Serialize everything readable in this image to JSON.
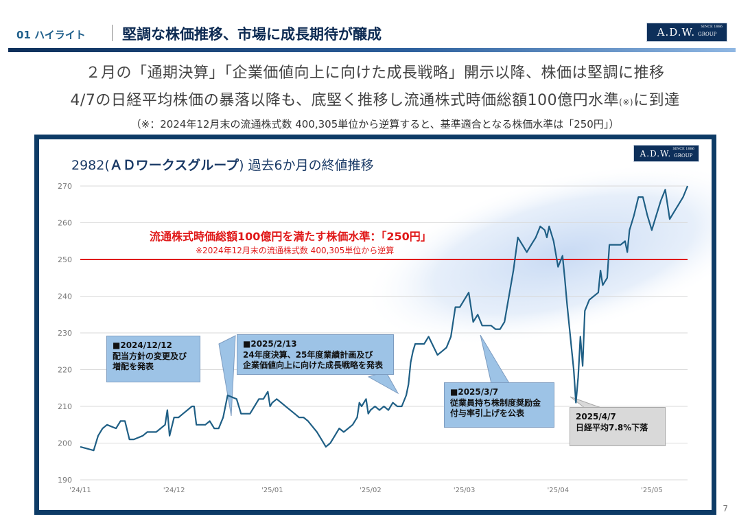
{
  "header": {
    "section": "01 ハイライト",
    "title": "堅調な株価推移、市場に成長期待が醸成",
    "logo_text": "A.D.W.",
    "logo_group": "GROUP",
    "logo_since": "SINCE 1886"
  },
  "lead": {
    "line1": "２月の「通期決算」「企業価値向上に向けた成長戦略」開示以降、株価は堅調に推移",
    "line2_main": "4/7の日経平均株価の暴落以降も、底堅く推移し流通株式時価総額100億円水準",
    "line2_small": "(※)",
    "line2_end": "に到達",
    "note": "（※：2024年12月末の流通株式数 400,305単位から逆算すると、基準適合となる株価水準は「250円」）"
  },
  "chart_title_code": "2982(",
  "chart_title_name": "ＡＤワークスグループ",
  "chart_title_rest": ") 過去6か月の終値推移",
  "annotations": {
    "threshold_label": "流通株式時価総額100億円を満たす株価水準：「250円」",
    "threshold_sub": "※2024年12月末の流通株式数 400,305単位から逆算",
    "c1_line1": "■2024/12/12",
    "c1_line2": "配当方針の変更及び",
    "c1_line3": "増配を発表",
    "c2_line1": "■2025/2/13",
    "c2_line2": "24年度決算、25年度業績計画及び",
    "c2_line3": "企業価値向上に向けた成長戦略を発表",
    "c3_line1": "■2025/3/7",
    "c3_line2": "従業員持ち株制度奨励金",
    "c3_line3": "付与率引上げを公表",
    "c4_line1": "2025/4/7",
    "c4_line2": "日経平均7.8%下落"
  },
  "page_number": "7",
  "colors": {
    "line": "#1f5f85",
    "threshold": "#e01818",
    "frame": "#0d3b66",
    "callout_blue": "#9dc3e6",
    "callout_gray": "#d9d9d9"
  },
  "chart_data": {
    "type": "line",
    "title": "2982(ＡＤワークスグループ) 過去6か月の終値推移",
    "ylim": [
      190,
      270
    ],
    "yticks": [
      190,
      200,
      210,
      220,
      230,
      240,
      250,
      260,
      270
    ],
    "xlim": [
      0,
      136
    ],
    "xticks": [
      {
        "x": 0,
        "label": "'24/11"
      },
      {
        "x": 21,
        "label": "'24/12"
      },
      {
        "x": 43,
        "label": "'25/01"
      },
      {
        "x": 65,
        "label": "'25/02"
      },
      {
        "x": 86,
        "label": "'25/03"
      },
      {
        "x": 107,
        "label": "'25/04"
      },
      {
        "x": 128,
        "label": "'25/05"
      }
    ],
    "threshold": 250,
    "grid": true,
    "series": [
      {
        "values": [
          [
            0,
            199
          ],
          [
            3,
            198
          ],
          [
            4,
            202
          ],
          [
            5,
            204
          ],
          [
            6,
            205
          ],
          [
            8,
            204
          ],
          [
            9,
            206
          ],
          [
            10,
            206
          ],
          [
            11,
            201
          ],
          [
            12,
            201
          ],
          [
            14,
            202
          ],
          [
            15,
            203
          ],
          [
            17,
            203
          ],
          [
            18,
            204
          ],
          [
            19,
            205
          ],
          [
            19.5,
            209
          ],
          [
            20,
            202
          ],
          [
            21,
            207
          ],
          [
            22,
            207
          ],
          [
            23,
            208
          ],
          [
            24,
            209
          ],
          [
            25,
            210
          ],
          [
            25.5,
            210
          ],
          [
            26,
            205
          ],
          [
            28,
            205
          ],
          [
            29,
            206
          ],
          [
            30,
            204
          ],
          [
            31,
            204
          ],
          [
            32,
            207
          ],
          [
            33,
            213
          ],
          [
            35,
            212
          ],
          [
            36,
            208
          ],
          [
            37,
            208
          ],
          [
            38,
            208
          ],
          [
            39,
            210
          ],
          [
            40,
            212
          ],
          [
            41,
            212
          ],
          [
            42,
            214
          ],
          [
            42.5,
            210
          ],
          [
            43,
            211
          ],
          [
            44,
            212
          ],
          [
            46,
            210
          ],
          [
            48,
            208
          ],
          [
            49,
            207
          ],
          [
            50,
            207
          ],
          [
            51,
            206
          ],
          [
            53,
            203
          ],
          [
            54,
            201
          ],
          [
            55,
            199
          ],
          [
            56,
            200
          ],
          [
            57,
            202
          ],
          [
            58,
            204
          ],
          [
            59,
            203
          ],
          [
            60,
            204
          ],
          [
            61,
            205
          ],
          [
            62,
            207
          ],
          [
            62.5,
            211
          ],
          [
            63,
            210
          ],
          [
            64,
            212
          ],
          [
            64.5,
            208
          ],
          [
            65,
            209
          ],
          [
            66,
            210
          ],
          [
            67,
            209
          ],
          [
            68,
            210
          ],
          [
            69,
            209
          ],
          [
            70,
            211
          ],
          [
            71,
            210
          ],
          [
            72,
            210
          ],
          [
            73,
            213
          ],
          [
            73.5,
            216
          ],
          [
            74,
            222
          ],
          [
            74.5,
            225
          ],
          [
            75,
            227
          ],
          [
            77,
            227
          ],
          [
            78,
            229
          ],
          [
            80,
            224
          ],
          [
            81,
            225
          ],
          [
            82,
            226
          ],
          [
            83,
            229
          ],
          [
            84,
            237
          ],
          [
            85,
            237
          ],
          [
            86,
            239
          ],
          [
            87,
            241
          ],
          [
            88,
            233
          ],
          [
            89,
            235
          ],
          [
            90,
            232
          ],
          [
            91,
            232
          ],
          [
            92,
            232
          ],
          [
            93,
            231
          ],
          [
            94,
            231
          ],
          [
            95,
            233
          ],
          [
            96,
            240
          ],
          [
            97,
            247
          ],
          [
            98,
            256
          ],
          [
            99,
            254
          ],
          [
            100,
            252
          ],
          [
            101,
            254
          ],
          [
            102,
            256
          ],
          [
            103,
            259
          ],
          [
            104,
            258
          ],
          [
            104.5,
            256
          ],
          [
            105,
            259
          ],
          [
            106,
            255
          ],
          [
            107,
            248
          ],
          [
            108,
            251
          ],
          [
            108.5,
            245
          ],
          [
            109,
            238
          ],
          [
            110,
            226
          ],
          [
            110.5,
            220
          ],
          [
            111,
            211
          ],
          [
            111.5,
            218
          ],
          [
            112,
            229
          ],
          [
            112.5,
            221
          ],
          [
            113,
            236
          ],
          [
            114,
            239
          ],
          [
            115,
            240
          ],
          [
            116,
            241
          ],
          [
            116.5,
            247
          ],
          [
            117,
            243
          ],
          [
            118,
            245
          ],
          [
            118.5,
            254
          ],
          [
            119,
            254
          ],
          [
            120,
            254
          ],
          [
            121,
            254
          ],
          [
            122,
            255
          ],
          [
            122.5,
            252
          ],
          [
            123,
            258
          ],
          [
            124,
            262
          ],
          [
            125,
            267
          ],
          [
            126,
            267
          ],
          [
            127,
            262
          ],
          [
            128,
            258
          ],
          [
            129,
            262
          ],
          [
            130,
            266
          ],
          [
            131,
            269
          ],
          [
            132,
            261
          ],
          [
            133,
            263
          ],
          [
            134,
            265
          ],
          [
            135,
            267
          ],
          [
            136,
            270
          ]
        ]
      }
    ]
  }
}
